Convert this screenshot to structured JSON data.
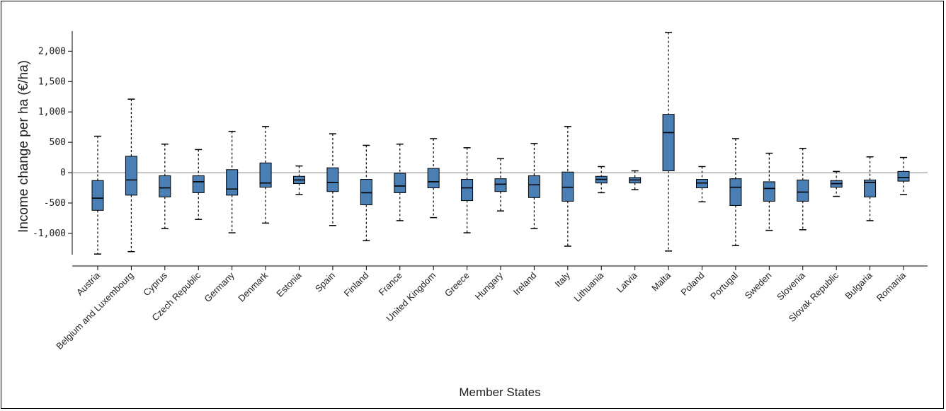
{
  "chart_data": {
    "type": "box",
    "title": "",
    "xlabel": "Member States",
    "ylabel": "Income change per ha (€/ha)",
    "ylim": [
      -1350,
      2330
    ],
    "yticks": [
      -1000,
      -500,
      0,
      500,
      1000,
      1500,
      2000
    ],
    "ytick_labels": [
      "-1,000",
      "-500",
      "0",
      "500",
      "1,000",
      "1,500",
      "2,000"
    ],
    "box_color": "#4a7fb5",
    "categories": [
      "Austria",
      "Belgium and Luxembourg",
      "Cyprus",
      "Czech Republic",
      "Germany",
      "Denmark",
      "Estonia",
      "Spain",
      "Finland",
      "France",
      "United Kingdom",
      "Greece",
      "Hungary",
      "Ireland",
      "Italy",
      "Lithuania",
      "Latvia",
      "Malta",
      "Poland",
      "Portugal",
      "Sweden",
      "Slovenia",
      "Slovak Republic",
      "Bulgaria",
      "Romania"
    ],
    "boxes": [
      {
        "min": -1340,
        "q1": -620,
        "median": -420,
        "q3": -130,
        "max": 600
      },
      {
        "min": -1300,
        "q1": -370,
        "median": -120,
        "q3": 270,
        "max": 1210
      },
      {
        "min": -920,
        "q1": -400,
        "median": -250,
        "q3": -50,
        "max": 470
      },
      {
        "min": -770,
        "q1": -330,
        "median": -150,
        "q3": -50,
        "max": 380
      },
      {
        "min": -990,
        "q1": -370,
        "median": -270,
        "q3": 50,
        "max": 680
      },
      {
        "min": -830,
        "q1": -240,
        "median": -170,
        "q3": 160,
        "max": 760
      },
      {
        "min": -360,
        "q1": -180,
        "median": -120,
        "q3": -60,
        "max": 110
      },
      {
        "min": -870,
        "q1": -310,
        "median": -160,
        "q3": 80,
        "max": 640
      },
      {
        "min": -1120,
        "q1": -530,
        "median": -330,
        "q3": -110,
        "max": 450
      },
      {
        "min": -790,
        "q1": -330,
        "median": -220,
        "q3": -10,
        "max": 470
      },
      {
        "min": -740,
        "q1": -250,
        "median": -150,
        "q3": 70,
        "max": 560
      },
      {
        "min": -990,
        "q1": -460,
        "median": -250,
        "q3": -110,
        "max": 410
      },
      {
        "min": -630,
        "q1": -310,
        "median": -190,
        "q3": -100,
        "max": 230
      },
      {
        "min": -920,
        "q1": -410,
        "median": -200,
        "q3": -50,
        "max": 480
      },
      {
        "min": -1210,
        "q1": -470,
        "median": -240,
        "q3": 10,
        "max": 760
      },
      {
        "min": -330,
        "q1": -170,
        "median": -110,
        "q3": -60,
        "max": 100
      },
      {
        "min": -280,
        "q1": -170,
        "median": -120,
        "q3": -80,
        "max": 30
      },
      {
        "min": -1290,
        "q1": 30,
        "median": 660,
        "q3": 960,
        "max": 2310
      },
      {
        "min": -480,
        "q1": -250,
        "median": -170,
        "q3": -110,
        "max": 100
      },
      {
        "min": -1200,
        "q1": -540,
        "median": -240,
        "q3": -100,
        "max": 560
      },
      {
        "min": -950,
        "q1": -470,
        "median": -260,
        "q3": -150,
        "max": 320
      },
      {
        "min": -940,
        "q1": -470,
        "median": -320,
        "q3": -120,
        "max": 400
      },
      {
        "min": -390,
        "q1": -240,
        "median": -180,
        "q3": -130,
        "max": 20
      },
      {
        "min": -790,
        "q1": -400,
        "median": -160,
        "q3": -120,
        "max": 260
      },
      {
        "min": -360,
        "q1": -140,
        "median": -80,
        "q3": 20,
        "max": 250
      }
    ]
  }
}
